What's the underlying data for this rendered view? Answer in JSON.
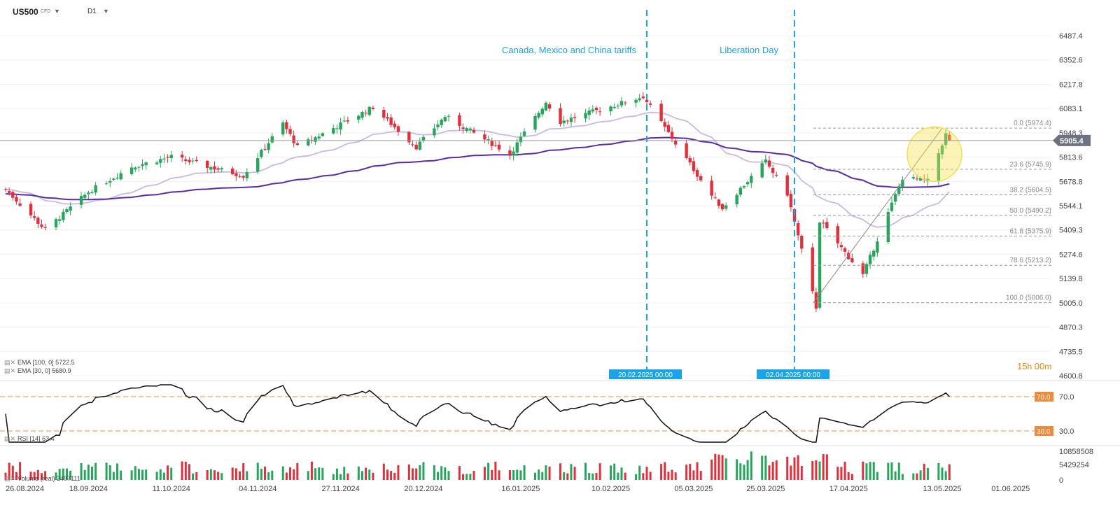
{
  "header": {
    "symbol": "US500",
    "symbol_type": "CFD",
    "timeframe": "D1",
    "caret_icon": "chevron-down-icon"
  },
  "events": [
    {
      "label": "Canada, Mexico and China tariffs",
      "date_tag": "20.02.2025 00:00"
    },
    {
      "label": "Liberation Day",
      "date_tag": "02.04.2025 00:00"
    }
  ],
  "price_axis": {
    "ticks": [
      "6487.4",
      "6352.6",
      "6217.8",
      "6083.1",
      "5948.3",
      "5813.6",
      "5678.8",
      "5544.1",
      "5409.3",
      "5274.6",
      "5139.8",
      "5005.0",
      "4870.3",
      "4735.5",
      "4600.8"
    ],
    "current_price": "5905.4"
  },
  "fibonacci": [
    {
      "label": "0.0 (5974.4)",
      "value": 5974.4
    },
    {
      "label": "23.6 (5745.9)",
      "value": 5745.9
    },
    {
      "label": "38.2 (5604.5)",
      "value": 5604.5
    },
    {
      "label": "50.0 (5490.2)",
      "value": 5490.2
    },
    {
      "label": "61.8 (5375.9)",
      "value": 5375.9
    },
    {
      "label": "78.6 (5213.2)",
      "value": 5213.2
    },
    {
      "label": "100.0 (5006.0)",
      "value": 5006.0
    }
  ],
  "indicators": {
    "ema100_label": "EMA [100, 0] 5722.5",
    "ema30_label": "EMA [30, 0] 5680.9",
    "rsi_label": "RSI [14] 63.4",
    "volume_label": "Volume (real) 2497111"
  },
  "countdown": {
    "hours": "15",
    "h_unit": "h",
    "minutes": "00",
    "m_unit": "m"
  },
  "rsi_axis": {
    "upper": "70.0",
    "lower": "30.0",
    "upper_tag": "70.0",
    "lower_tag": "30.0"
  },
  "volume_axis": {
    "ticks": [
      "10858508",
      "5429254",
      "0"
    ]
  },
  "date_axis": [
    "26.08.2024",
    "18.09.2024",
    "11.10.2024",
    "04.11.2024",
    "27.11.2024",
    "20.12.2024",
    "16.01.2025",
    "10.02.2025",
    "05.03.2025",
    "25.03.2025",
    "17.04.2025",
    "13.05.2025",
    "01.06.2025"
  ],
  "chart_data": {
    "type": "candlestick",
    "instrument": "US500 CFD",
    "timeframe": "D1",
    "x_range": [
      "26.08.2024",
      "13.05.2025"
    ],
    "ylim": [
      4600.8,
      6487.4
    ],
    "colors": {
      "up": "#26a65b",
      "down": "#e0303b",
      "ema100": "#5b2aa6",
      "ema30": "#c9b8e6",
      "event_line": "#1aa3e8",
      "highlight": "#f4e04d"
    },
    "price_anchors": [
      {
        "date": "26.08.2024",
        "close": 5635
      },
      {
        "date": "06.09.2024",
        "close": 5410
      },
      {
        "date": "18.09.2024",
        "close": 5620
      },
      {
        "date": "30.09.2024",
        "close": 5760
      },
      {
        "date": "11.10.2024",
        "close": 5815
      },
      {
        "date": "31.10.2024",
        "close": 5710
      },
      {
        "date": "11.11.2024",
        "close": 6000
      },
      {
        "date": "15.11.2024",
        "close": 5870
      },
      {
        "date": "06.12.2024",
        "close": 6090
      },
      {
        "date": "18.12.2024",
        "close": 5870
      },
      {
        "date": "26.12.2024",
        "close": 6040
      },
      {
        "date": "13.01.2025",
        "close": 5830
      },
      {
        "date": "23.01.2025",
        "close": 6120
      },
      {
        "date": "27.01.2025",
        "close": 6010
      },
      {
        "date": "19.02.2025",
        "close": 6150
      },
      {
        "date": "10.03.2025",
        "close": 5600
      },
      {
        "date": "13.03.2025",
        "close": 5530
      },
      {
        "date": "25.03.2025",
        "close": 5790
      },
      {
        "date": "31.03.2025",
        "close": 5610
      },
      {
        "date": "08.04.2025",
        "close": 4980
      },
      {
        "date": "09.04.2025",
        "close": 5460
      },
      {
        "date": "21.04.2025",
        "close": 5160
      },
      {
        "date": "02.05.2025",
        "close": 5700
      },
      {
        "date": "09.05.2025",
        "close": 5680
      },
      {
        "date": "14.05.2025",
        "close": 5940
      },
      {
        "date": "15.05.2025",
        "close": 5905
      }
    ],
    "ema100_last": 5722.5,
    "ema30_last": 5680.9,
    "rsi": {
      "period": 14,
      "last": 63.4,
      "levels": [
        70,
        30
      ]
    },
    "volume": {
      "max_tick": 10858508,
      "last": 2497111
    }
  }
}
